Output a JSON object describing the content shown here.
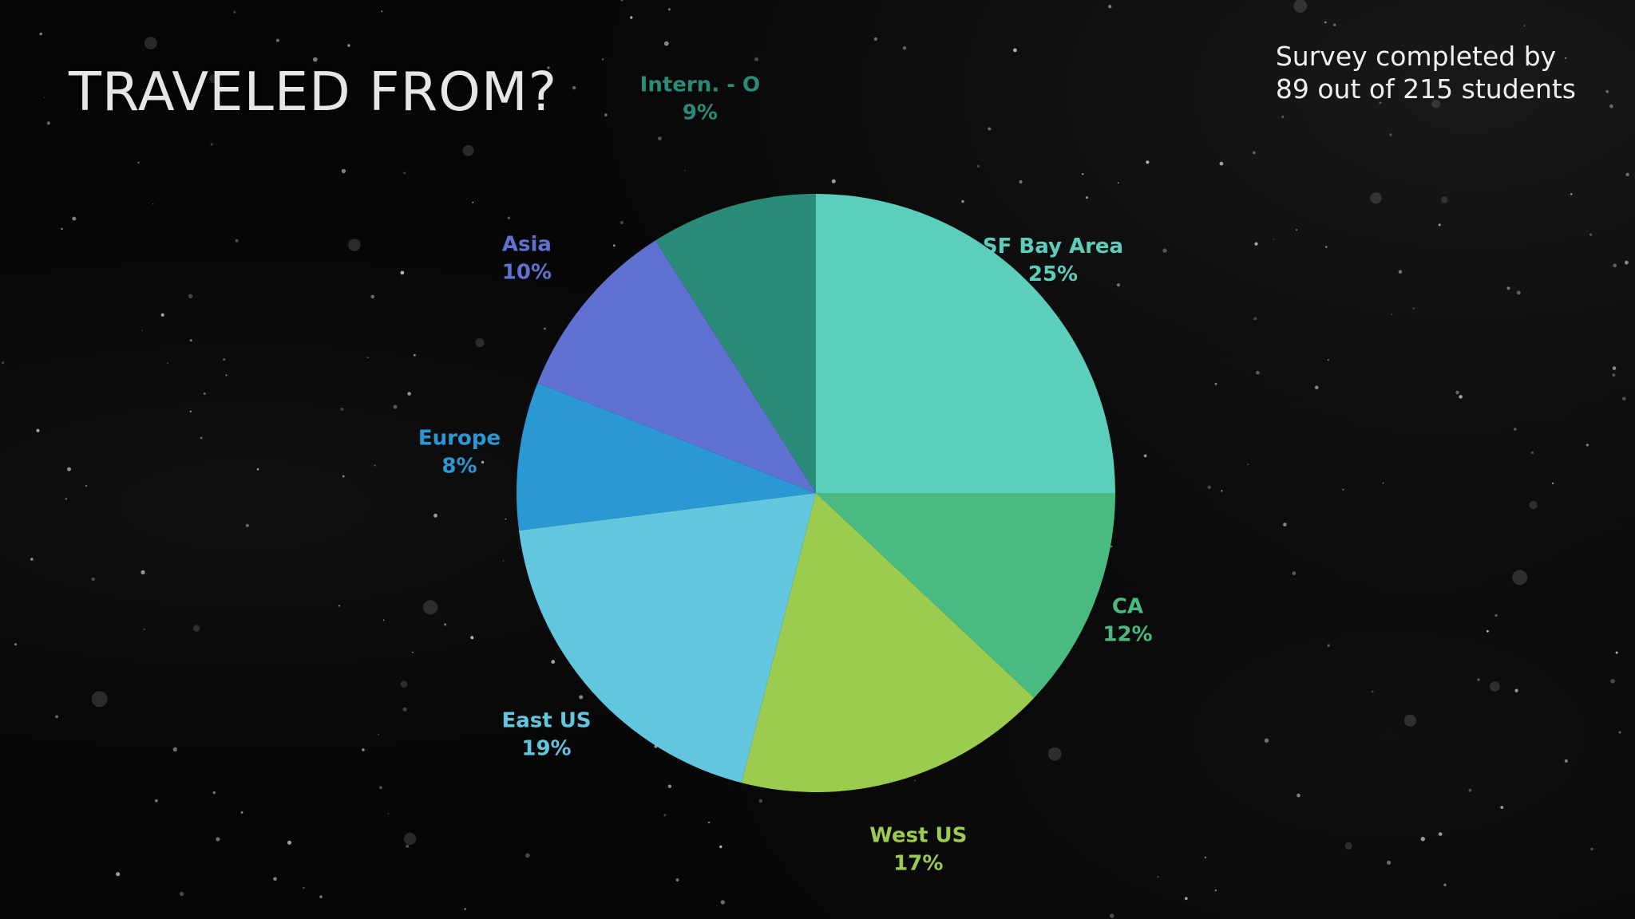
{
  "slide": {
    "title": "TRAVELED FROM?",
    "note_line1": "Survey completed by",
    "note_line2": "89 out of 215 students"
  },
  "chart_data": {
    "type": "pie",
    "title": "TRAVELED FROM?",
    "start": "12 o'clock, clockwise",
    "series": [
      {
        "label": "SF Bay Area",
        "percent_label": "25%",
        "value": 25,
        "color": "#5ccfbc"
      },
      {
        "label": "CA",
        "percent_label": "12%",
        "value": 12,
        "color": "#49bb80"
      },
      {
        "label": "West US",
        "percent_label": "17%",
        "value": 17,
        "color": "#9bcc50"
      },
      {
        "label": "East US",
        "percent_label": "19%",
        "value": 19,
        "color": "#62c6df"
      },
      {
        "label": "Europe",
        "percent_label": "8%",
        "value": 8,
        "color": "#2a98d2"
      },
      {
        "label": "Asia",
        "percent_label": "10%",
        "value": 10,
        "color": "#6071d2"
      },
      {
        "label": "Intern. - O",
        "percent_label": "9%",
        "value": 9,
        "color": "#2a8b79"
      }
    ],
    "background": "#060606",
    "label_color_matches_slice": true
  }
}
